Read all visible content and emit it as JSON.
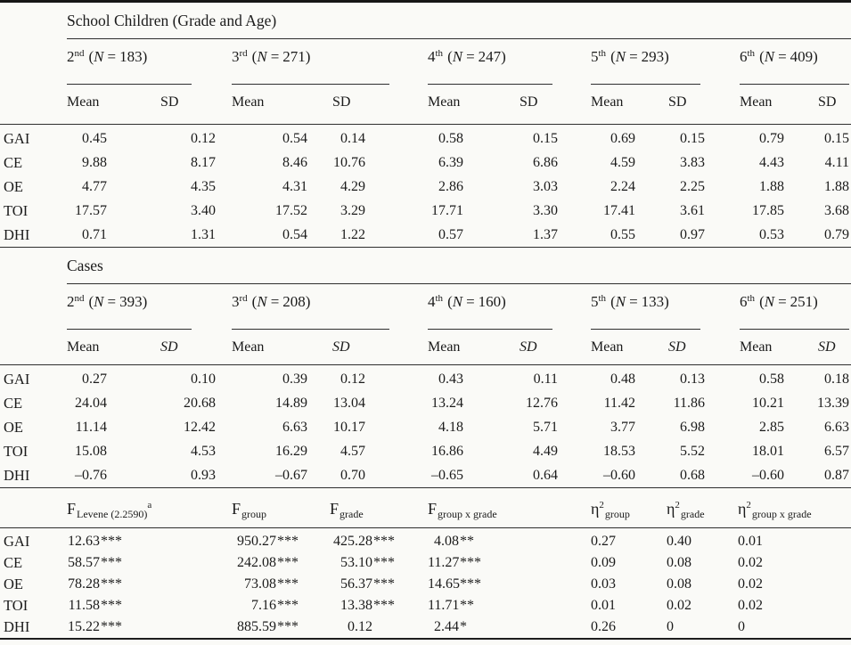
{
  "punct": {
    "open": "(",
    "n": "N",
    "eq": "=",
    "close": ")"
  },
  "school": {
    "title": "School Children (Grade and Age)",
    "mean_label": "Mean",
    "sd_label": "SD",
    "groups": [
      {
        "ord": "2",
        "sup": "nd",
        "n": "183"
      },
      {
        "ord": "3",
        "sup": "rd",
        "n": "271"
      },
      {
        "ord": "4",
        "sup": "th",
        "n": "247"
      },
      {
        "ord": "5",
        "sup": "th",
        "n": "293"
      },
      {
        "ord": "6",
        "sup": "th",
        "n": "409"
      }
    ],
    "rows": [
      {
        "label": "GAI",
        "vals": [
          "0.45",
          "0.12",
          "0.54",
          "0.14",
          "0.58",
          "0.15",
          "0.69",
          "0.15",
          "0.79",
          "0.15"
        ]
      },
      {
        "label": "CE",
        "vals": [
          "9.88",
          "8.17",
          "8.46",
          "10.76",
          "6.39",
          "6.86",
          "4.59",
          "3.83",
          "4.43",
          "4.11"
        ]
      },
      {
        "label": "OE",
        "vals": [
          "4.77",
          "4.35",
          "4.31",
          "4.29",
          "2.86",
          "3.03",
          "2.24",
          "2.25",
          "1.88",
          "1.88"
        ]
      },
      {
        "label": "TOI",
        "vals": [
          "17.57",
          "3.40",
          "17.52",
          "3.29",
          "17.71",
          "3.30",
          "17.41",
          "3.61",
          "17.85",
          "3.68"
        ]
      },
      {
        "label": "DHI",
        "vals": [
          "0.71",
          "1.31",
          "0.54",
          "1.22",
          "0.57",
          "1.37",
          "0.55",
          "0.97",
          "0.53",
          "0.79"
        ]
      }
    ]
  },
  "cases": {
    "title": "Cases",
    "mean_label": "Mean",
    "sd_label": "SD",
    "groups": [
      {
        "ord": "2",
        "sup": "nd",
        "n": "393"
      },
      {
        "ord": "3",
        "sup": "rd",
        "n": "208"
      },
      {
        "ord": "4",
        "sup": "th",
        "n": "160"
      },
      {
        "ord": "5",
        "sup": "th",
        "n": "133"
      },
      {
        "ord": "6",
        "sup": "th",
        "n": "251"
      }
    ],
    "rows": [
      {
        "label": "GAI",
        "vals": [
          "0.27",
          "0.10",
          "0.39",
          "0.12",
          "0.43",
          "0.11",
          "0.48",
          "0.13",
          "0.58",
          "0.18"
        ]
      },
      {
        "label": "CE",
        "vals": [
          "24.04",
          "20.68",
          "14.89",
          "13.04",
          "13.24",
          "12.76",
          "11.42",
          "11.86",
          "10.21",
          "13.39"
        ]
      },
      {
        "label": "OE",
        "vals": [
          "11.14",
          "12.42",
          "6.63",
          "10.17",
          "4.18",
          "5.71",
          "3.77",
          "6.98",
          "2.85",
          "6.63"
        ]
      },
      {
        "label": "TOI",
        "vals": [
          "15.08",
          "4.53",
          "16.29",
          "4.57",
          "16.86",
          "4.49",
          "18.53",
          "5.52",
          "18.01",
          "6.57"
        ]
      },
      {
        "label": "DHI",
        "vals": [
          "–0.76",
          "0.93",
          "–0.67",
          "0.70",
          "–0.65",
          "0.64",
          "–0.60",
          "0.68",
          "–0.60",
          "0.87"
        ]
      }
    ]
  },
  "stats": {
    "headers": [
      {
        "base": "F",
        "sub": "Levene (2.2590)",
        "sup": "a"
      },
      {
        "base": "F",
        "sub": "group"
      },
      {
        "base": "F",
        "sub": "grade"
      },
      {
        "base": "F",
        "sub": "group x grade"
      },
      {
        "base": "η",
        "sup": "2",
        "sub": "group"
      },
      {
        "base": "η",
        "sup": "2",
        "sub": "grade"
      },
      {
        "base": "η",
        "sup": "2",
        "sub": "group x grade"
      }
    ],
    "rows": [
      {
        "label": "GAI",
        "f": [
          {
            "num": "12.63",
            "stars": "***"
          },
          {
            "num": "950.27",
            "stars": "***"
          },
          {
            "num": "425.28",
            "stars": "***"
          },
          {
            "num": "4.08",
            "stars": "**"
          }
        ],
        "eta": [
          "0.27",
          "0.40",
          "0.01"
        ]
      },
      {
        "label": "CE",
        "f": [
          {
            "num": "58.57",
            "stars": "***"
          },
          {
            "num": "242.08",
            "stars": "***"
          },
          {
            "num": "53.10",
            "stars": "***"
          },
          {
            "num": "11.27",
            "stars": "***"
          }
        ],
        "eta": [
          "0.09",
          "0.08",
          "0.02"
        ]
      },
      {
        "label": "OE",
        "f": [
          {
            "num": "78.28",
            "stars": "***"
          },
          {
            "num": "73.08",
            "stars": "***"
          },
          {
            "num": "56.37",
            "stars": "***"
          },
          {
            "num": "14.65",
            "stars": "***"
          }
        ],
        "eta": [
          "0.03",
          "0.08",
          "0.02"
        ]
      },
      {
        "label": "TOI",
        "f": [
          {
            "num": "11.58",
            "stars": "***"
          },
          {
            "num": "7.16",
            "stars": "***"
          },
          {
            "num": "13.38",
            "stars": "***"
          },
          {
            "num": "11.71",
            "stars": "**"
          }
        ],
        "eta": [
          "0.01",
          "0.02",
          "0.02"
        ]
      },
      {
        "label": "DHI",
        "f": [
          {
            "num": "15.22",
            "stars": "***"
          },
          {
            "num": "885.59",
            "stars": "***"
          },
          {
            "num": "0.12",
            "stars": ""
          },
          {
            "num": "2.44",
            "stars": "*"
          }
        ],
        "eta": [
          "0.26",
          "0",
          "0"
        ]
      }
    ]
  }
}
